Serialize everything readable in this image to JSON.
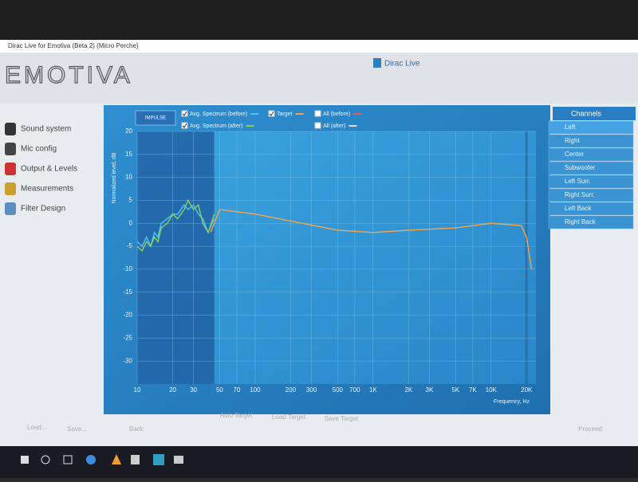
{
  "window_title": "Dirac Live for Emotiva (Beta 2) (Micro Perche)",
  "brand": "EMOTIVA",
  "product": "Dirac Live",
  "nav": [
    "Sound system",
    "Mic config",
    "Output & Levels",
    "Measurements",
    "Filter Design"
  ],
  "channels": {
    "title": "Channels",
    "items": [
      "Left",
      "Right",
      "Center",
      "Subwoofer",
      "Left Surr.",
      "Right Surr.",
      "Left Back",
      "Right Back"
    ]
  },
  "buttons": {
    "impulse": "IMPULSE",
    "auto_target": "Auto Target",
    "load_target": "Load Target",
    "save_target": "Save Target",
    "load": "Load...",
    "save": "Save...",
    "back": "Back",
    "proceed": "Proceed"
  },
  "chart_data": {
    "type": "line",
    "y_label": "Normalized level, dB",
    "x_label": "Frequency, Hz",
    "x_log": true,
    "grid": true,
    "xlim": [
      10,
      24000
    ],
    "ylim": [
      -35,
      20
    ],
    "correction_range": [
      45,
      20000
    ],
    "xticks": [
      10,
      20,
      30,
      50,
      70,
      100,
      200,
      300,
      500,
      700,
      {
        "value": 1000,
        "label": "1K"
      },
      {
        "value": 2000,
        "label": "2K"
      },
      {
        "value": 3000,
        "label": "3K"
      },
      {
        "value": 5000,
        "label": "5K"
      },
      {
        "value": 7000,
        "label": "7K"
      },
      {
        "value": 10000,
        "label": "10K"
      },
      {
        "value": 20000,
        "label": "20K"
      }
    ],
    "yticks": [
      20,
      15,
      10,
      5,
      0,
      -5,
      -10,
      -15,
      -20,
      -25,
      -30
    ],
    "series": [
      {
        "name": "Avg. Spectrum (before)",
        "color": "#4fc3f7",
        "checked": true,
        "x": [
          10,
          11,
          12,
          13,
          14,
          15,
          16,
          18,
          20,
          22,
          25,
          27,
          30,
          33,
          36,
          40,
          45
        ],
        "values": [
          -4,
          -5,
          -3,
          -5,
          -2,
          -3,
          0,
          1,
          2,
          2,
          4,
          3,
          4,
          2,
          1,
          -2,
          1
        ]
      },
      {
        "name": "Avg. Spectrum (after)",
        "color": "#8bd15a",
        "checked": true,
        "x": [
          10,
          11,
          12,
          13,
          14,
          15,
          16,
          18,
          20,
          22,
          25,
          27,
          30,
          33,
          36,
          40,
          45
        ],
        "values": [
          -5,
          -6,
          -4,
          -5,
          -3,
          -4,
          -1,
          0,
          2,
          1,
          3,
          5,
          3,
          4,
          0,
          -2,
          2
        ]
      },
      {
        "name": "Target",
        "color": "#f5a64a",
        "checked": true,
        "x": [
          42,
          50,
          100,
          200,
          500,
          1000,
          2000,
          5000,
          10000,
          18000,
          20000,
          22000
        ],
        "values": [
          -2,
          3,
          2,
          0.5,
          -1.5,
          -2,
          -1.5,
          -1,
          0,
          -0.5,
          -3,
          -10
        ]
      },
      {
        "name": "All (before)",
        "color": "#e06060",
        "checked": false,
        "x": [],
        "values": []
      },
      {
        "name": "All (after)",
        "color": "#dddddd",
        "checked": false,
        "x": [],
        "values": []
      }
    ]
  }
}
